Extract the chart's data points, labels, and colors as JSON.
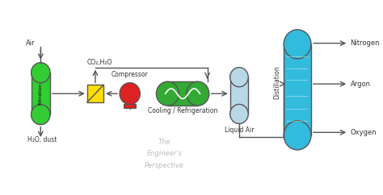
{
  "bg_color": "#ffffff",
  "filter_color": "#33cc33",
  "heat_exchanger_color": "#ffdd00",
  "compressor_color": "#dd2222",
  "cooler_color": "#33aa33",
  "liquid_air_color": "#b8d8e8",
  "distillation_color": "#33bbdd",
  "arrow_color": "#555555",
  "text_color": "#333333",
  "watermark_color": "#bbbbbb",
  "labels": {
    "air": "Air",
    "h2o_dust": "H₂O, dust",
    "co2_h2o": "CO₂,H₂O",
    "filtration": "Filtration",
    "compressor": "Compressor",
    "cooling": "Cooling / Refrigeration",
    "liquid_air": "Liquid Air",
    "distillation": "Distillation",
    "nitrogen": "Nitrogen",
    "argon": "Argon",
    "oxygen": "Oxygen",
    "watermark1": "The",
    "watermark2": "Engineer's",
    "watermark3": "Perspective"
  },
  "xlim": [
    0,
    10
  ],
  "ylim": [
    0,
    5
  ]
}
